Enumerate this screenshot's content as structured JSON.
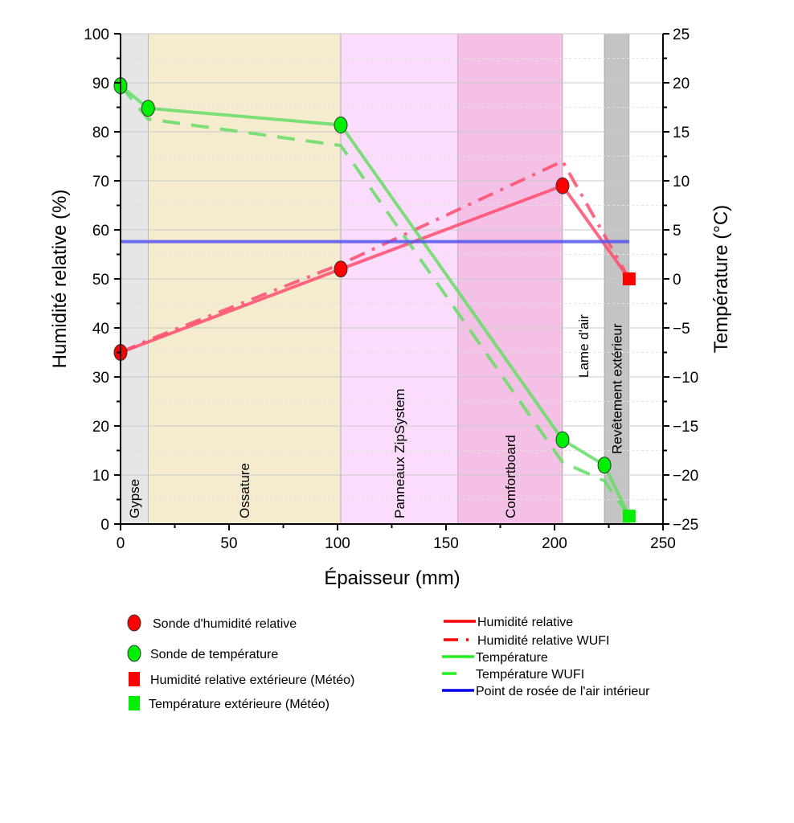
{
  "chart_data": {
    "type": "line",
    "xlabel": "Épaisseur (mm)",
    "ylabel": "Humidité relative (%)",
    "y2label": "Température (°C)",
    "xlim": [
      0,
      250
    ],
    "ylim": [
      0,
      100
    ],
    "y2lim": [
      -25,
      25
    ],
    "xticks": [
      0,
      50,
      100,
      150,
      200,
      250
    ],
    "yticks": [
      0,
      10,
      20,
      30,
      40,
      50,
      60,
      70,
      80,
      90,
      100
    ],
    "y2ticks": [
      -25,
      -20,
      -15,
      -10,
      -5,
      0,
      5,
      10,
      15,
      20,
      25
    ],
    "y2tick_labels": [
      "−25",
      "−20",
      "−15",
      "−10",
      "−5",
      "0",
      "5",
      "10",
      "15",
      "20",
      "25"
    ],
    "grid": true,
    "layers": [
      {
        "name": "Gypse",
        "from": 0,
        "to": 12.7,
        "color": "#e6e6e6"
      },
      {
        "name": "Ossature",
        "from": 12.7,
        "to": 101.5,
        "color": "#f5ecd0"
      },
      {
        "name": "Panneaux ZipSystem",
        "from": 101.5,
        "to": 155.5,
        "color": "#fcdcfc"
      },
      {
        "name": "Comfortboard",
        "from": 155.5,
        "to": 203.7,
        "color": "#f5c0e6"
      },
      {
        "name": "Lame d'air",
        "from": 203.7,
        "to": 223,
        "color": "#ffffff"
      },
      {
        "name": "Revêtement extérieur",
        "from": 223,
        "to": 234.4,
        "color": "#c4c4c4"
      }
    ],
    "series": [
      {
        "name": "Humidité relative",
        "axis": "left",
        "style": "solid",
        "color": "#ff4d6d",
        "x": [
          0,
          101.5,
          203.7,
          234.4
        ],
        "y": [
          35,
          52,
          69,
          50
        ]
      },
      {
        "name": "Humidité relative WUFI",
        "axis": "left",
        "style": "dashdot",
        "color": "#ff4d6d",
        "x": [
          0,
          12.7,
          101.5,
          203.7,
          234.4
        ],
        "y": [
          35,
          37.5,
          53,
          74,
          50
        ]
      },
      {
        "name": "Température",
        "axis": "right",
        "style": "solid",
        "color": "#66dd66",
        "x": [
          0,
          12.7,
          101.5,
          203.7,
          223,
          234.4
        ],
        "y": [
          19.7,
          17.4,
          15.7,
          -16.4,
          -19.0,
          -24.2
        ]
      },
      {
        "name": "Température WUFI",
        "axis": "right",
        "style": "dashed",
        "color": "#66dd66",
        "x": [
          0,
          12.7,
          101.5,
          203.7,
          223,
          234.4
        ],
        "y": [
          19.7,
          16.3,
          13.6,
          -18.7,
          -20.6,
          -24.2
        ]
      },
      {
        "name": "Point de rosée de l'air intérieur",
        "axis": "right",
        "style": "solid",
        "color": "#5555ee",
        "x": [
          0,
          234.4
        ],
        "y": [
          3.8,
          3.8
        ]
      }
    ],
    "markers": [
      {
        "name": "Sonde d'humidité relative",
        "shape": "circle",
        "color": "#ff0000",
        "axis": "left",
        "x": [
          0,
          101.5,
          203.7
        ],
        "y": [
          35,
          52,
          69
        ]
      },
      {
        "name": "Sonde de température",
        "shape": "circle",
        "color": "#00ee00",
        "axis": "right",
        "x": [
          0,
          12.7,
          101.5,
          203.7,
          223
        ],
        "y": [
          19.7,
          17.4,
          15.7,
          -16.4,
          -19.0
        ]
      },
      {
        "name": "Humidité relative extérieure (Météo)",
        "shape": "square",
        "color": "#ff0000",
        "axis": "left",
        "x": [
          234.4
        ],
        "y": [
          50
        ]
      },
      {
        "name": "Température extérieure (Météo)",
        "shape": "square",
        "color": "#00ee00",
        "axis": "right",
        "x": [
          234.4
        ],
        "y": [
          -24.2
        ]
      }
    ],
    "legend_placement": "bottom"
  }
}
